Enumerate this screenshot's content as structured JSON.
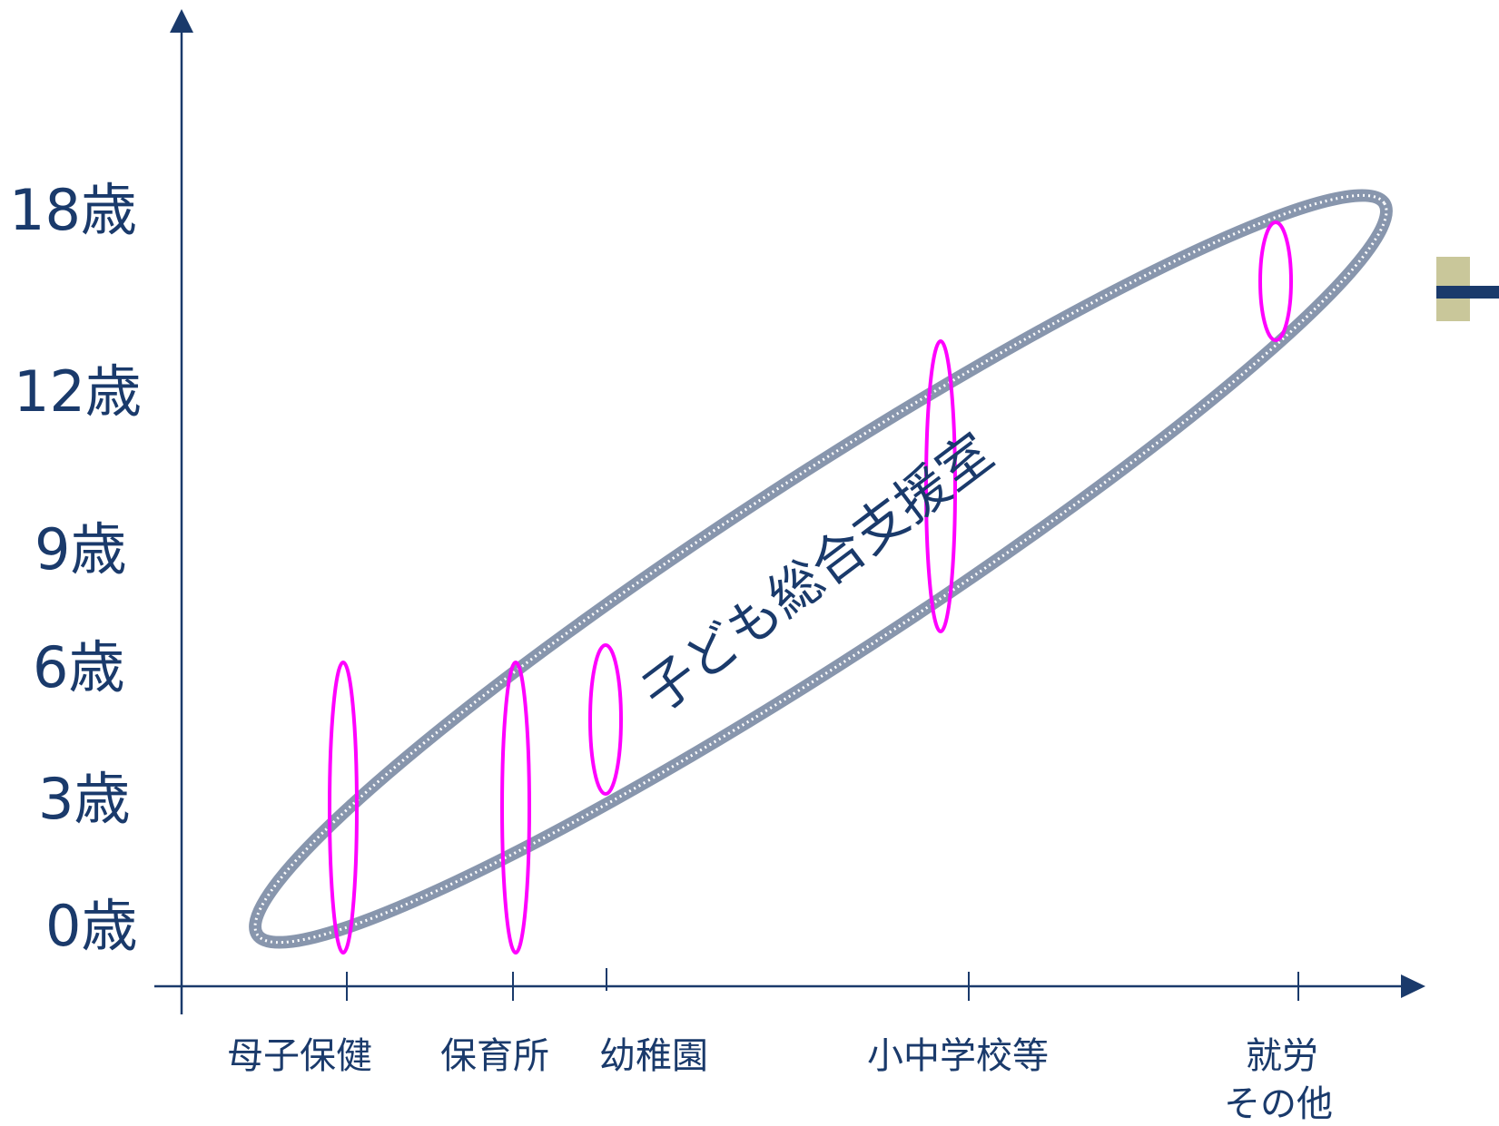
{
  "y_axis": {
    "labels": [
      "18歳",
      "12歳",
      "9歳",
      "6歳",
      "3歳",
      "0歳"
    ]
  },
  "x_axis": {
    "labels": [
      "母子保健",
      "保育所",
      "幼稚園",
      "小中学校等",
      "就労",
      "その他"
    ]
  },
  "center": {
    "label": "子ども総合支援室"
  },
  "colors": {
    "axis": "#1a3a6b",
    "big_ellipse": "#8896ad",
    "stage_ellipse": "#ff00ff",
    "corner_tab": "#c9c79a"
  }
}
